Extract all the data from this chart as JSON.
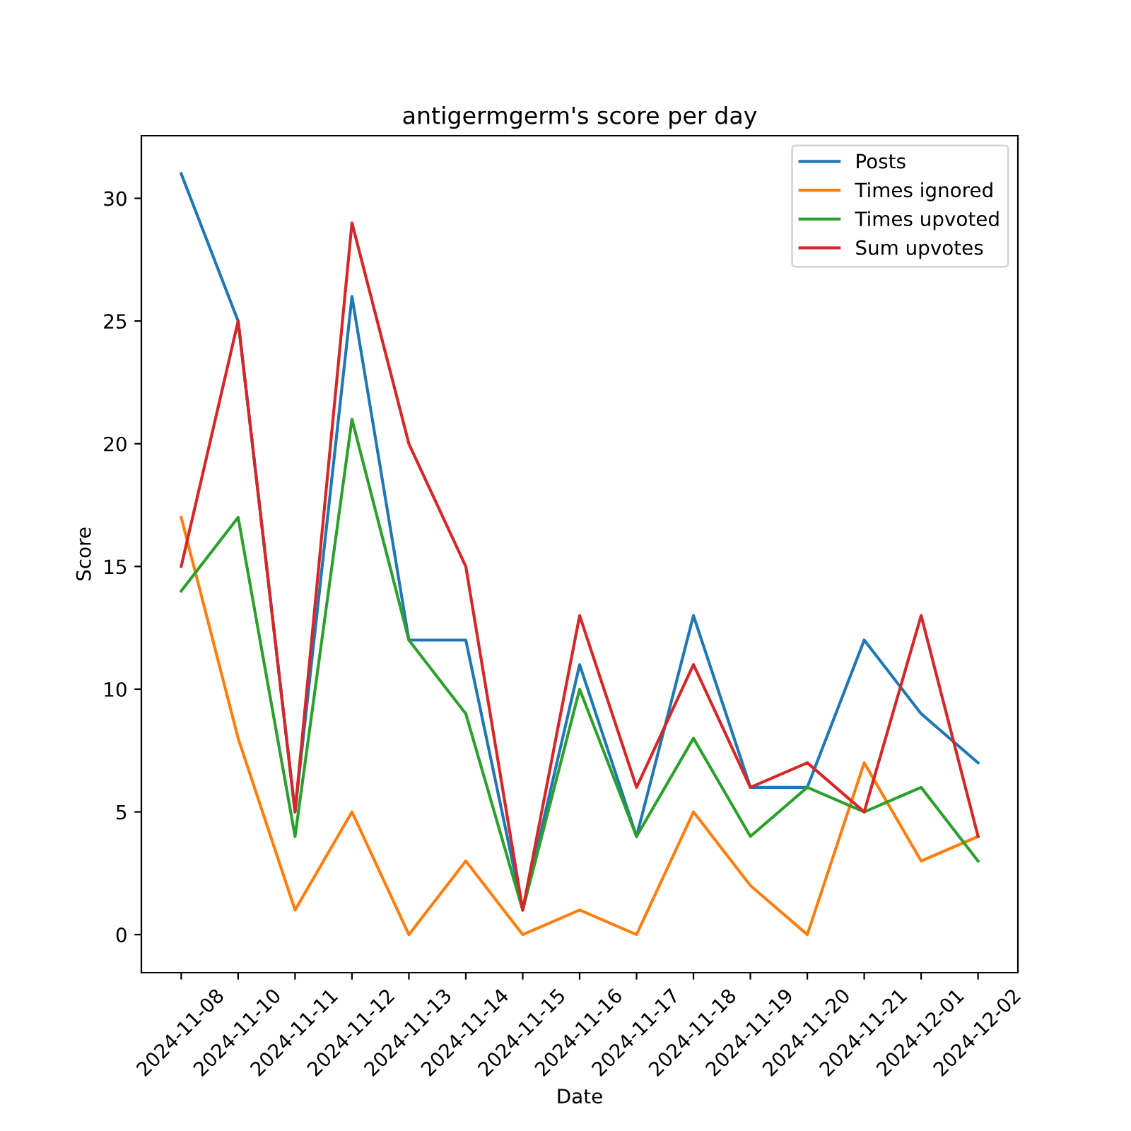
{
  "chart_data": {
    "type": "line",
    "title": "antigermgerm's score per day",
    "xlabel": "Date",
    "ylabel": "Score",
    "categories": [
      "2024-11-08",
      "2024-11-10",
      "2024-11-11",
      "2024-11-12",
      "2024-11-13",
      "2024-11-14",
      "2024-11-15",
      "2024-11-16",
      "2024-11-17",
      "2024-11-18",
      "2024-11-19",
      "2024-11-20",
      "2024-11-21",
      "2024-12-01",
      "2024-12-02"
    ],
    "series": [
      {
        "name": "Posts",
        "color": "#1f77b4",
        "values": [
          31,
          25,
          5,
          26,
          12,
          12,
          1,
          11,
          4,
          13,
          6,
          6,
          12,
          9,
          7
        ]
      },
      {
        "name": "Times ignored",
        "color": "#ff7f0e",
        "values": [
          17,
          8,
          1,
          5,
          0,
          3,
          0,
          1,
          0,
          5,
          2,
          0,
          7,
          3,
          4
        ]
      },
      {
        "name": "Times upvoted",
        "color": "#2ca02c",
        "values": [
          14,
          17,
          4,
          21,
          12,
          9,
          1,
          10,
          4,
          8,
          4,
          6,
          5,
          6,
          3
        ]
      },
      {
        "name": "Sum upvotes",
        "color": "#d62728",
        "values": [
          15,
          25,
          5,
          29,
          20,
          15,
          1,
          13,
          6,
          11,
          6,
          7,
          5,
          13,
          4
        ]
      }
    ],
    "ylim": [
      -1.55,
      32.55
    ],
    "yticks": [
      0,
      5,
      10,
      15,
      20,
      25,
      30
    ],
    "grid": false,
    "legend": "top right",
    "marker": "none",
    "line_style": "solid"
  }
}
